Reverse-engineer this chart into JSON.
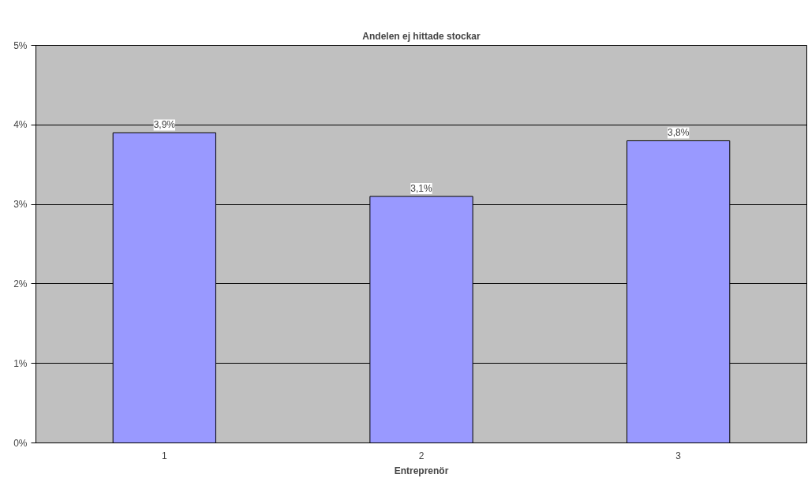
{
  "chart_data": {
    "type": "bar",
    "title": "Andelen ej hittade stockar",
    "xlabel": "Entreprenör",
    "categories": [
      "1",
      "2",
      "3"
    ],
    "values": [
      3.9,
      3.1,
      3.8
    ],
    "value_labels": [
      "3,9%",
      "3,1%",
      "3,8%"
    ],
    "color": "#9999ff",
    "ylim": [
      0,
      5
    ],
    "yticks": [
      {
        "value": 0,
        "label": "0%"
      },
      {
        "value": 1,
        "label": "1%"
      },
      {
        "value": 2,
        "label": "2%"
      },
      {
        "value": 3,
        "label": "3%"
      },
      {
        "value": 4,
        "label": "4%"
      },
      {
        "value": 5,
        "label": "5%"
      }
    ],
    "grid": "y"
  }
}
